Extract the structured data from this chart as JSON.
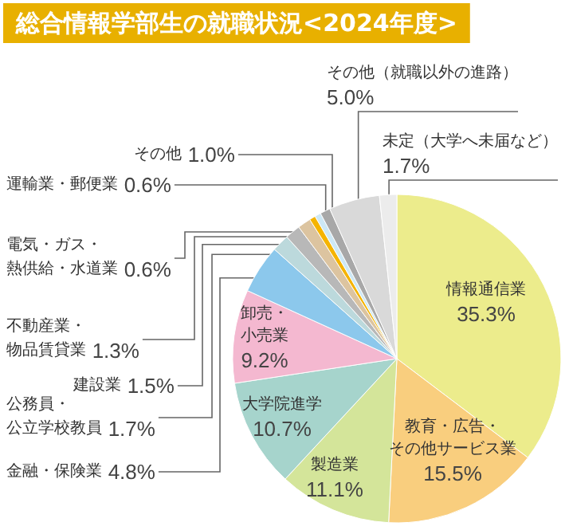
{
  "chart_data": {
    "type": "pie",
    "title": "総合情報学部生の就職状況<2024年度>",
    "categories": [
      "情報通信業",
      "教育・広告・その他サービス業",
      "製造業",
      "大学院進学",
      "卸売・小売業",
      "金融・保険業",
      "公務員・公立学校教員",
      "建設業",
      "不動産業・物品賃貸業",
      "電気・ガス・熱供給・水道業",
      "運輸業・郵便業",
      "その他",
      "その他（就職以外の進路）",
      "未定（大学へ未届など）"
    ],
    "values": [
      35.3,
      15.5,
      11.1,
      10.7,
      9.2,
      4.8,
      1.7,
      1.5,
      1.3,
      0.6,
      0.6,
      1.0,
      5.0,
      1.7
    ],
    "value_labels": [
      "35.3%",
      "15.5%",
      "11.1%",
      "10.7%",
      "9.2%",
      "4.8%",
      "1.7%",
      "1.5%",
      "1.3%",
      "0.6%",
      "0.6%",
      "1.0%",
      "5.0%",
      "1.7%"
    ],
    "colors": [
      "#ecec8c",
      "#f9ce7e",
      "#d4e59a",
      "#a6d4cc",
      "#f4b8d0",
      "#8cc8ec",
      "#bcd9dc",
      "#b8b8b8",
      "#dcc4a0",
      "#f5b400",
      "#cde8f5",
      "#a8a8a8",
      "#d9d9d9",
      "#ececec"
    ]
  }
}
